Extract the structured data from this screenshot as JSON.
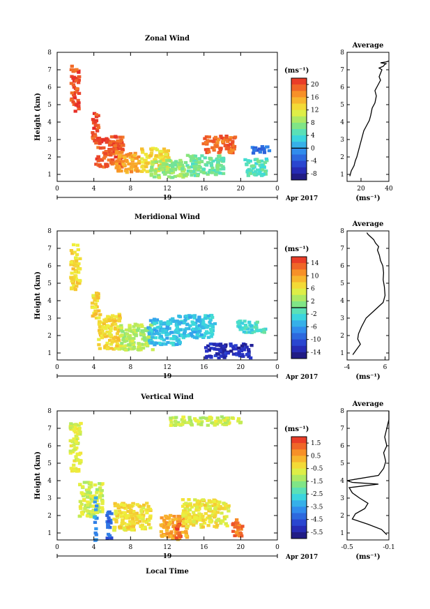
{
  "figure": {
    "month_label": "Apr 2017",
    "day_label": "19",
    "xlabel": "Local Time",
    "ylabel": "Height (km)",
    "unit_label": "(ms⁻¹)"
  },
  "chart_data": [
    {
      "type": "heatmap",
      "title": "Zonal Wind",
      "xlabel": "Local Time",
      "ylabel": "Height (km)",
      "x_ticks": [
        "0",
        "4",
        "8",
        "12",
        "16",
        "20",
        "0"
      ],
      "y_ticks": [
        "1",
        "2",
        "3",
        "4",
        "5",
        "6",
        "7",
        "8"
      ],
      "xlim": [
        0,
        24
      ],
      "ylim": [
        0.6,
        8
      ],
      "colorbar": {
        "ticks": [
          "20",
          "16",
          "12",
          "8",
          "4",
          "0",
          "-4",
          "-8"
        ],
        "range": [
          -10,
          22
        ],
        "zero_line": 0
      },
      "blobs": [
        {
          "x": 1.8,
          "y": 6.0,
          "w": 0.9,
          "h": 2.6,
          "v": 20
        },
        {
          "x": 4.0,
          "y": 3.8,
          "w": 0.7,
          "h": 1.6,
          "v": 20
        },
        {
          "x": 5.5,
          "y": 2.4,
          "w": 3.2,
          "h": 1.8,
          "v": 20
        },
        {
          "x": 7.5,
          "y": 1.8,
          "w": 2.5,
          "h": 1.2,
          "v": 16
        },
        {
          "x": 10.5,
          "y": 1.9,
          "w": 3.0,
          "h": 1.4,
          "v": 13
        },
        {
          "x": 12.0,
          "y": 1.4,
          "w": 4.0,
          "h": 1.0,
          "v": 8
        },
        {
          "x": 16.0,
          "y": 1.6,
          "w": 4.0,
          "h": 1.2,
          "v": 6
        },
        {
          "x": 17.5,
          "y": 2.8,
          "w": 3.5,
          "h": 1.0,
          "v": 19
        },
        {
          "x": 21.5,
          "y": 1.5,
          "w": 2.5,
          "h": 1.0,
          "v": 5
        },
        {
          "x": 22.0,
          "y": 2.5,
          "w": 2.0,
          "h": 0.4,
          "v": -3
        }
      ]
    },
    {
      "type": "heatmap",
      "title": "Meridional Wind",
      "xlabel": "Local Time",
      "ylabel": "Height (km)",
      "x_ticks": [
        "0",
        "4",
        "8",
        "12",
        "16",
        "20",
        "0"
      ],
      "y_ticks": [
        "1",
        "2",
        "3",
        "4",
        "5",
        "6",
        "7",
        "8"
      ],
      "xlim": [
        0,
        24
      ],
      "ylim": [
        0.6,
        8
      ],
      "colorbar": {
        "ticks": [
          "14",
          "10",
          "6",
          "2",
          "-2",
          "-6",
          "-10",
          "-14"
        ],
        "range": [
          -16,
          16
        ],
        "zero_line": 0
      },
      "blobs": [
        {
          "x": 1.8,
          "y": 6.0,
          "w": 1.0,
          "h": 2.6,
          "v": 7
        },
        {
          "x": 4.0,
          "y": 3.8,
          "w": 0.8,
          "h": 1.6,
          "v": 7
        },
        {
          "x": 5.5,
          "y": 2.3,
          "w": 2.5,
          "h": 2.0,
          "v": 7
        },
        {
          "x": 8.5,
          "y": 2.0,
          "w": 3.5,
          "h": 1.5,
          "v": 3
        },
        {
          "x": 11.5,
          "y": 2.3,
          "w": 3.5,
          "h": 1.5,
          "v": -4
        },
        {
          "x": 15.0,
          "y": 2.6,
          "w": 4.0,
          "h": 1.3,
          "v": -4
        },
        {
          "x": 18.5,
          "y": 1.2,
          "w": 5.0,
          "h": 0.8,
          "v": -13
        },
        {
          "x": 21.0,
          "y": 2.6,
          "w": 3.0,
          "h": 0.7,
          "v": -2
        }
      ]
    },
    {
      "type": "heatmap",
      "title": "Vertical Wind",
      "xlabel": "Local Time",
      "ylabel": "Height (km)",
      "x_ticks": [
        "0",
        "4",
        "8",
        "12",
        "16",
        "20",
        "0"
      ],
      "y_ticks": [
        "1",
        "2",
        "3",
        "4",
        "5",
        "6",
        "7",
        "8"
      ],
      "xlim": [
        0,
        24
      ],
      "ylim": [
        0.6,
        8
      ],
      "colorbar": {
        "ticks": [
          "1.5",
          "0.5",
          "-0.5",
          "-1.5",
          "-2.5",
          "-3.5",
          "-4.5",
          "-5.5"
        ],
        "range": [
          -6,
          2.2
        ],
        "zero_line": null
      },
      "blobs": [
        {
          "x": 1.8,
          "y": 6.0,
          "w": 1.2,
          "h": 2.8,
          "v": -0.6
        },
        {
          "x": 3.5,
          "y": 3.0,
          "w": 2.5,
          "h": 2.0,
          "v": -0.8
        },
        {
          "x": 4.0,
          "y": 1.8,
          "w": 0.3,
          "h": 2.8,
          "v": -3.5
        },
        {
          "x": 5.5,
          "y": 1.6,
          "w": 0.5,
          "h": 2.0,
          "v": -4.2
        },
        {
          "x": 8.0,
          "y": 2.0,
          "w": 4.0,
          "h": 1.6,
          "v": -0.2
        },
        {
          "x": 12.5,
          "y": 1.4,
          "w": 3.0,
          "h": 1.4,
          "v": 0.6
        },
        {
          "x": 13.0,
          "y": 1.2,
          "w": 0.6,
          "h": 0.8,
          "v": 1.6
        },
        {
          "x": 16.0,
          "y": 2.2,
          "w": 5.0,
          "h": 1.6,
          "v": -0.3
        },
        {
          "x": 19.5,
          "y": 1.4,
          "w": 1.2,
          "h": 1.0,
          "v": 1.2
        },
        {
          "x": 16.0,
          "y": 7.5,
          "w": 8.0,
          "h": 0.5,
          "v": -0.8
        }
      ]
    }
  ],
  "profiles": [
    {
      "type": "line",
      "title": "Average",
      "x_ticks": [
        "20",
        "40"
      ],
      "xlim": [
        10,
        40
      ],
      "xlabel": "(ms⁻¹)",
      "y_ticks": [
        "1",
        "2",
        "3",
        "4",
        "5",
        "6",
        "7",
        "8"
      ],
      "ylim": [
        0.6,
        8
      ],
      "x": [
        12,
        13,
        15,
        16,
        17,
        18,
        19,
        20,
        21,
        22,
        24,
        26,
        27,
        28,
        30,
        31,
        30,
        32,
        34,
        33,
        34,
        35,
        33,
        36,
        37,
        38,
        34,
        38,
        40
      ],
      "y": [
        0.9,
        1.2,
        1.5,
        1.8,
        2.0,
        2.3,
        2.6,
        2.9,
        3.2,
        3.5,
        3.8,
        4.1,
        4.4,
        4.8,
        5.1,
        5.5,
        5.8,
        6.1,
        6.4,
        6.6,
        6.8,
        7.0,
        7.1,
        7.2,
        7.3,
        7.35,
        7.4,
        7.45,
        7.5
      ]
    },
    {
      "type": "line",
      "title": "Average",
      "x_ticks": [
        "-4",
        "6"
      ],
      "xlim": [
        -4,
        7
      ],
      "xlabel": "(ms⁻¹)",
      "y_ticks": [
        "1",
        "2",
        "3",
        "4",
        "5",
        "6",
        "7",
        "8"
      ],
      "ylim": [
        0.6,
        8
      ],
      "x": [
        -2.5,
        -1.5,
        -0.5,
        -1.2,
        -1.0,
        -0.2,
        1.0,
        3.5,
        5.5,
        6.0,
        5.8,
        5.5,
        5.6,
        5.4,
        4.8,
        4.5,
        4.0,
        4.3,
        3.5,
        3.0,
        2.5,
        2.0,
        1.5,
        1.2
      ],
      "y": [
        0.9,
        1.2,
        1.5,
        1.8,
        2.1,
        2.5,
        3.0,
        3.5,
        3.9,
        4.3,
        4.8,
        5.2,
        5.6,
        6.0,
        6.3,
        6.6,
        6.9,
        7.1,
        7.3,
        7.5,
        7.6,
        7.7,
        7.8,
        7.9
      ]
    },
    {
      "type": "line",
      "title": "Average",
      "x_ticks": [
        "-0.5",
        "-0.1"
      ],
      "xlim": [
        -0.5,
        -0.1
      ],
      "xlabel": "(ms⁻¹)",
      "y_ticks": [
        "1",
        "2",
        "3",
        "4",
        "5",
        "6",
        "7",
        "8"
      ],
      "ylim": [
        0.6,
        8
      ],
      "x": [
        -0.12,
        -0.17,
        -0.3,
        -0.45,
        -0.42,
        -0.33,
        -0.3,
        -0.38,
        -0.45,
        -0.48,
        -0.2,
        -0.45,
        -0.5,
        -0.2,
        -0.15,
        -0.13,
        -0.15,
        -0.12,
        -0.14,
        -0.12,
        -0.1,
        -0.1
      ],
      "y": [
        0.9,
        1.2,
        1.5,
        1.8,
        2.1,
        2.4,
        2.7,
        3.0,
        3.3,
        3.6,
        3.8,
        3.9,
        4.0,
        4.3,
        4.7,
        5.1,
        5.6,
        6.0,
        6.5,
        7.0,
        7.5,
        8.0
      ]
    }
  ]
}
